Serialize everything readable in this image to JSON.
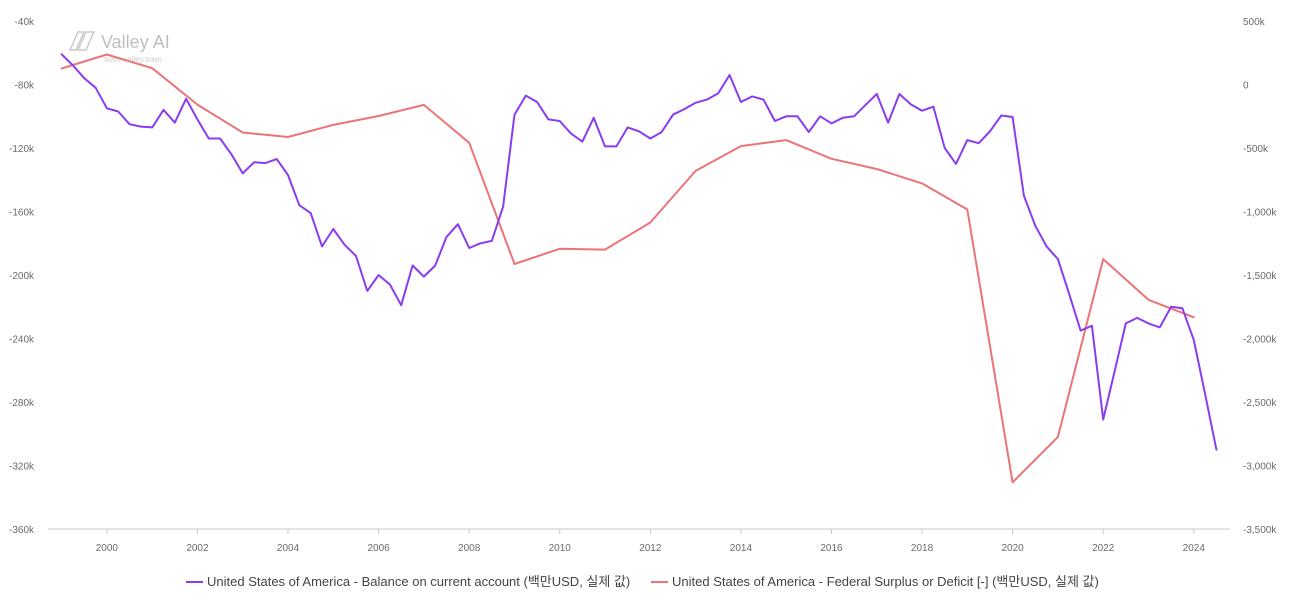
{
  "watermark": {
    "brand": "Valley AI",
    "url": "www.valley.town"
  },
  "chart_data": {
    "type": "line",
    "x_ticks": [
      2000,
      2002,
      2004,
      2006,
      2008,
      2010,
      2012,
      2014,
      2016,
      2018,
      2020,
      2022,
      2024
    ],
    "xlim": [
      1998.7,
      2024.8
    ],
    "y_left": {
      "lim": [
        -360000,
        -40000
      ],
      "ticks": [
        -40000,
        -80000,
        -120000,
        -160000,
        -200000,
        -240000,
        -280000,
        -320000,
        -360000
      ],
      "tick_labels": [
        "-40k",
        "-80k",
        "-120k",
        "-160k",
        "-200k",
        "-240k",
        "-280k",
        "-320k",
        "-360k"
      ]
    },
    "y_right": {
      "lim": [
        -3500000,
        500000
      ],
      "ticks": [
        500000,
        0,
        -500000,
        -1000000,
        -1500000,
        -2000000,
        -2500000,
        -3000000,
        -3500000
      ],
      "tick_labels": [
        "500k",
        "0",
        "-500k",
        "-1,000k",
        "-1,500k",
        "-2,000k",
        "-2,500k",
        "-3,000k",
        "-3,500k"
      ]
    },
    "legend_position": "bottom",
    "grid": false,
    "series": [
      {
        "name": "United States of America - Balance on current account (백만USD, 실제 값)",
        "color": "#8a3cf0",
        "axis": "left",
        "x": [
          1999.0,
          1999.25,
          1999.5,
          1999.75,
          2000.0,
          2000.25,
          2000.5,
          2000.75,
          2001.0,
          2001.25,
          2001.5,
          2001.75,
          2002.0,
          2002.25,
          2002.5,
          2002.75,
          2003.0,
          2003.25,
          2003.5,
          2003.75,
          2004.0,
          2004.25,
          2004.5,
          2004.75,
          2005.0,
          2005.25,
          2005.5,
          2005.75,
          2006.0,
          2006.25,
          2006.5,
          2006.75,
          2007.0,
          2007.25,
          2007.5,
          2007.75,
          2008.0,
          2008.25,
          2008.5,
          2008.75,
          2009.0,
          2009.25,
          2009.5,
          2009.75,
          2010.0,
          2010.25,
          2010.5,
          2010.75,
          2011.0,
          2011.25,
          2011.5,
          2011.75,
          2012.0,
          2012.25,
          2012.5,
          2012.75,
          2013.0,
          2013.25,
          2013.5,
          2013.75,
          2014.0,
          2014.25,
          2014.5,
          2014.75,
          2015.0,
          2015.25,
          2015.5,
          2015.75,
          2016.0,
          2016.25,
          2016.5,
          2016.75,
          2017.0,
          2017.25,
          2017.5,
          2017.75,
          2018.0,
          2018.25,
          2018.5,
          2018.75,
          2019.0,
          2019.25,
          2019.5,
          2019.75,
          2020.0,
          2020.25,
          2020.5,
          2020.75,
          2021.0,
          2021.25,
          2021.5,
          2021.75,
          2022.0,
          2022.25,
          2022.5,
          2022.75,
          2023.0,
          2023.25,
          2023.5,
          2023.75,
          2024.0,
          2024.25,
          2024.5
        ],
        "values": [
          -61000,
          -68000,
          -76000,
          -82000,
          -95000,
          -97000,
          -105000,
          -106500,
          -107000,
          -96000,
          -104000,
          -89000,
          -102000,
          -114000,
          -114000,
          -124000,
          -136000,
          -129000,
          -129500,
          -127000,
          -137000,
          -156000,
          -161000,
          -182000,
          -171000,
          -181000,
          -188000,
          -210000,
          -200000,
          -206000,
          -219000,
          -194000,
          -201000,
          -194000,
          -176000,
          -168000,
          -183000,
          -180000,
          -178500,
          -157000,
          -99000,
          -87000,
          -91000,
          -102000,
          -103000,
          -111000,
          -116000,
          -101000,
          -119000,
          -119000,
          -107000,
          -109500,
          -114000,
          -110000,
          -99000,
          -95500,
          -91500,
          -89500,
          -85500,
          -74000,
          -91000,
          -87500,
          -89500,
          -103000,
          -100000,
          -100000,
          -110000,
          -100000,
          -104500,
          -101000,
          -100000,
          -93000,
          -86000,
          -104000,
          -86000,
          -92500,
          -96500,
          -94000,
          -120000,
          -130000,
          -115000,
          -117000,
          -109500,
          -99500,
          -100500,
          -150000,
          -169000,
          -182000,
          -190000,
          -212000,
          -235000,
          -232000,
          -291000,
          -261000,
          -230500,
          -227000,
          -230500,
          -233000,
          -220000,
          -221000,
          -241000,
          -275000,
          -310000
        ]
      },
      {
        "name": "United States of America - Federal Surplus or Deficit [-] (백만USD, 실제 값)",
        "color": "#ea7476",
        "axis": "right",
        "x": [
          1999,
          2000,
          2001,
          2002,
          2003,
          2004,
          2005,
          2006,
          2007,
          2008,
          2009,
          2010,
          2011,
          2012,
          2013,
          2014,
          2015,
          2016,
          2017,
          2018,
          2019,
          2020,
          2021,
          2022,
          2023,
          2024
        ],
        "values": [
          126000,
          236000,
          128000,
          -158000,
          -378000,
          -413000,
          -318000,
          -248000,
          -161000,
          -459000,
          -1413000,
          -1294000,
          -1300000,
          -1087000,
          -680000,
          -485000,
          -438000,
          -585000,
          -665000,
          -779000,
          -984000,
          -3132000,
          -2775000,
          -1375000,
          -1695000,
          -1833000
        ]
      }
    ]
  }
}
